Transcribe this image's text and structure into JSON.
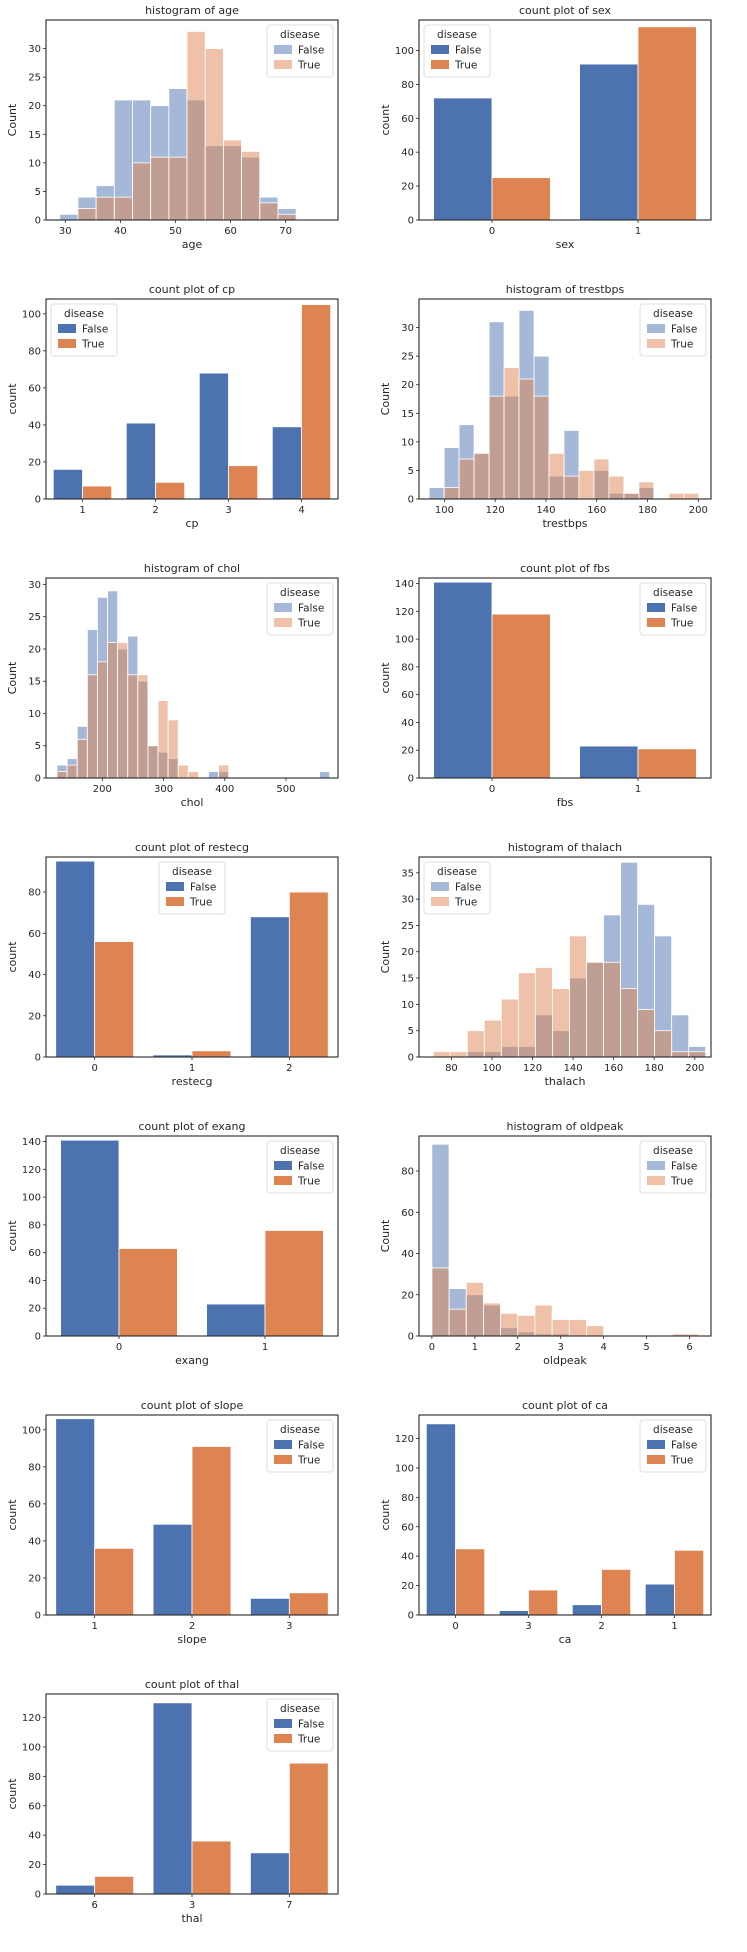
{
  "chart_data": [
    {
      "type": "histogram",
      "title": "histogram of age",
      "xlabel": "age",
      "ylabel": "Count",
      "xlim": [
        26.5,
        79.5
      ],
      "ylim": [
        0,
        35
      ],
      "xticks": [
        30,
        40,
        50,
        60,
        70
      ],
      "yticks": [
        0,
        5,
        10,
        15,
        20,
        25,
        30
      ],
      "bin_edges": [
        29,
        32.3,
        35.6,
        38.9,
        42.2,
        45.5,
        48.8,
        52.1,
        55.4,
        58.7,
        62,
        65.3,
        68.6,
        71.9,
        75.2,
        78.5
      ],
      "legend": {
        "title": "disease",
        "position": "upper right"
      },
      "series": [
        {
          "name": "False",
          "color": "#4c72b0",
          "values": [
            1,
            4,
            6,
            21,
            21,
            20,
            23,
            21,
            13,
            13,
            11,
            4,
            2
          ]
        },
        {
          "name": "True",
          "color": "#dd8452",
          "values": [
            0,
            2,
            4,
            4,
            10,
            11,
            11,
            33,
            30,
            14,
            12,
            3,
            1
          ]
        }
      ]
    },
    {
      "type": "bar",
      "title": "count plot of sex",
      "xlabel": "sex",
      "ylabel": "count",
      "categories": [
        "0",
        "1"
      ],
      "ylim": [
        0,
        118
      ],
      "yticks": [
        0,
        20,
        40,
        60,
        80,
        100
      ],
      "legend": {
        "title": "disease",
        "position": "upper left"
      },
      "series": [
        {
          "name": "False",
          "color": "#4c72b0",
          "values": [
            72,
            92
          ]
        },
        {
          "name": "True",
          "color": "#dd8452",
          "values": [
            25,
            114
          ]
        }
      ]
    },
    {
      "type": "bar",
      "title": "count plot of cp",
      "xlabel": "cp",
      "ylabel": "count",
      "categories": [
        "1",
        "2",
        "3",
        "4"
      ],
      "ylim": [
        0,
        108
      ],
      "yticks": [
        0,
        20,
        40,
        60,
        80,
        100
      ],
      "legend": {
        "title": "disease",
        "position": "upper left"
      },
      "series": [
        {
          "name": "False",
          "color": "#4c72b0",
          "values": [
            16,
            41,
            68,
            39
          ]
        },
        {
          "name": "True",
          "color": "#dd8452",
          "values": [
            7,
            9,
            18,
            105
          ]
        }
      ]
    },
    {
      "type": "histogram",
      "title": "histogram of trestbps",
      "xlabel": "trestbps",
      "ylabel": "Count",
      "xlim": [
        90,
        205
      ],
      "ylim": [
        0,
        35
      ],
      "xticks": [
        100,
        120,
        140,
        160,
        180,
        200
      ],
      "yticks": [
        0,
        5,
        10,
        15,
        20,
        25,
        30
      ],
      "bin_edges": [
        94,
        99.9,
        105.8,
        111.7,
        117.6,
        123.5,
        129.4,
        135.3,
        141.2,
        147.1,
        153,
        158.9,
        164.8,
        170.7,
        176.6,
        182.5,
        188.4,
        194.3,
        200.2
      ],
      "legend": {
        "title": "disease",
        "position": "upper right"
      },
      "series": [
        {
          "name": "False",
          "color": "#4c72b0",
          "values": [
            2,
            9,
            13,
            8,
            31,
            18,
            33,
            25,
            4,
            12,
            0,
            5,
            1,
            1,
            2,
            0,
            0,
            0
          ]
        },
        {
          "name": "True",
          "color": "#dd8452",
          "values": [
            0,
            2,
            7,
            8,
            18,
            23,
            21,
            18,
            8,
            4,
            5,
            7,
            4,
            1,
            3,
            0,
            1,
            1
          ]
        }
      ]
    },
    {
      "type": "histogram",
      "title": "histogram of chol",
      "xlabel": "chol",
      "ylabel": "Count",
      "xlim": [
        108,
        585
      ],
      "ylim": [
        0,
        31
      ],
      "xticks": [
        200,
        300,
        400,
        500
      ],
      "yticks": [
        0,
        5,
        10,
        15,
        20,
        25,
        30
      ],
      "bin_edges": [
        126,
        142.5,
        159,
        175.5,
        192,
        208.5,
        225,
        241.5,
        258,
        274.5,
        291,
        307.5,
        324,
        340.5,
        357,
        373.5,
        390,
        406.5,
        423,
        439.5,
        456,
        472.5,
        489,
        505.5,
        522,
        538.5,
        555,
        571.5
      ],
      "legend": {
        "title": "disease",
        "position": "upper right"
      },
      "series": [
        {
          "name": "False",
          "color": "#4c72b0",
          "values": [
            2,
            3,
            8,
            23,
            28,
            29,
            20,
            22,
            15,
            5,
            4,
            3,
            0,
            0,
            0,
            1,
            1,
            0,
            0,
            0,
            0,
            0,
            0,
            0,
            0,
            0,
            1
          ]
        },
        {
          "name": "True",
          "color": "#dd8452",
          "values": [
            1,
            2,
            6,
            16,
            18,
            21,
            21,
            16,
            16,
            5,
            12,
            9,
            2,
            1,
            0,
            0,
            2,
            0,
            0,
            0,
            0,
            0,
            0,
            0,
            0,
            0,
            0
          ]
        }
      ]
    },
    {
      "type": "bar",
      "title": "count plot of fbs",
      "xlabel": "fbs",
      "ylabel": "count",
      "categories": [
        "0",
        "1"
      ],
      "ylim": [
        0,
        144
      ],
      "yticks": [
        0,
        20,
        40,
        60,
        80,
        100,
        120,
        140
      ],
      "legend": {
        "title": "disease",
        "position": "upper right"
      },
      "series": [
        {
          "name": "False",
          "color": "#4c72b0",
          "values": [
            141,
            23
          ]
        },
        {
          "name": "True",
          "color": "#dd8452",
          "values": [
            118,
            21
          ]
        }
      ]
    },
    {
      "type": "bar",
      "title": "count plot of restecg",
      "xlabel": "restecg",
      "ylabel": "count",
      "categories": [
        "0",
        "1",
        "2"
      ],
      "ylim": [
        0,
        97
      ],
      "yticks": [
        0,
        20,
        40,
        60,
        80
      ],
      "legend": {
        "title": "disease",
        "position": "upper center"
      },
      "series": [
        {
          "name": "False",
          "color": "#4c72b0",
          "values": [
            95,
            1,
            68
          ]
        },
        {
          "name": "True",
          "color": "#dd8452",
          "values": [
            56,
            3,
            80
          ]
        }
      ]
    },
    {
      "type": "histogram",
      "title": "histogram of thalach",
      "xlabel": "thalach",
      "ylabel": "Count",
      "xlim": [
        64,
        208
      ],
      "ylim": [
        0,
        38
      ],
      "xticks": [
        80,
        100,
        120,
        140,
        160,
        180,
        200
      ],
      "yticks": [
        0,
        5,
        10,
        15,
        20,
        25,
        30,
        35
      ],
      "bin_edges": [
        71,
        79.4,
        87.8,
        96.2,
        104.6,
        113,
        121.4,
        129.8,
        138.2,
        146.6,
        155,
        163.4,
        171.8,
        180.2,
        188.6,
        197,
        205.4
      ],
      "legend": {
        "title": "disease",
        "position": "upper left"
      },
      "series": [
        {
          "name": "False",
          "color": "#4c72b0",
          "values": [
            0,
            0,
            1,
            1,
            2,
            2,
            8,
            5,
            15,
            18,
            27,
            37,
            29,
            23,
            8,
            2
          ]
        },
        {
          "name": "True",
          "color": "#dd8452",
          "values": [
            1,
            1,
            5,
            7,
            11,
            16,
            17,
            13,
            23,
            18,
            18,
            13,
            9,
            5,
            1,
            1
          ]
        }
      ]
    },
    {
      "type": "bar",
      "title": "count plot of exang",
      "xlabel": "exang",
      "ylabel": "count",
      "categories": [
        "0",
        "1"
      ],
      "ylim": [
        0,
        144
      ],
      "yticks": [
        0,
        20,
        40,
        60,
        80,
        100,
        120,
        140
      ],
      "legend": {
        "title": "disease",
        "position": "upper right"
      },
      "series": [
        {
          "name": "False",
          "color": "#4c72b0",
          "values": [
            141,
            23
          ]
        },
        {
          "name": "True",
          "color": "#dd8452",
          "values": [
            63,
            76
          ]
        }
      ]
    },
    {
      "type": "histogram",
      "title": "histogram of oldpeak",
      "xlabel": "oldpeak",
      "ylabel": "Count",
      "xlim": [
        -0.3,
        6.5
      ],
      "ylim": [
        0,
        97
      ],
      "xticks": [
        0,
        1,
        2,
        3,
        4,
        5,
        6
      ],
      "yticks": [
        0,
        20,
        40,
        60,
        80
      ],
      "bin_edges": [
        0,
        0.4,
        0.8,
        1.2,
        1.6,
        2,
        2.4,
        2.8,
        3.2,
        3.6,
        4,
        4.4,
        4.8,
        5.2,
        5.6,
        6,
        6.2
      ],
      "legend": {
        "title": "disease",
        "position": "upper right"
      },
      "series": [
        {
          "name": "False",
          "color": "#4c72b0",
          "values": [
            93,
            23,
            20,
            15,
            4,
            2,
            1,
            1,
            0,
            0,
            0,
            0,
            0,
            0,
            0,
            0
          ]
        },
        {
          "name": "True",
          "color": "#dd8452",
          "values": [
            33,
            13,
            26,
            16,
            11,
            10,
            15,
            8,
            8,
            5,
            0,
            0,
            0,
            0,
            1,
            1
          ]
        }
      ]
    },
    {
      "type": "bar",
      "title": "count plot of slope",
      "xlabel": "slope",
      "ylabel": "count",
      "categories": [
        "1",
        "2",
        "3"
      ],
      "ylim": [
        0,
        108
      ],
      "yticks": [
        0,
        20,
        40,
        60,
        80,
        100
      ],
      "legend": {
        "title": "disease",
        "position": "upper right"
      },
      "series": [
        {
          "name": "False",
          "color": "#4c72b0",
          "values": [
            106,
            49,
            9
          ]
        },
        {
          "name": "True",
          "color": "#dd8452",
          "values": [
            36,
            91,
            12
          ]
        }
      ]
    },
    {
      "type": "bar",
      "title": "count plot of ca",
      "xlabel": "ca",
      "ylabel": "count",
      "categories": [
        "0",
        "3",
        "2",
        "1"
      ],
      "ylim": [
        0,
        136
      ],
      "yticks": [
        0,
        20,
        40,
        60,
        80,
        100,
        120
      ],
      "legend": {
        "title": "disease",
        "position": "upper right"
      },
      "series": [
        {
          "name": "False",
          "color": "#4c72b0",
          "values": [
            130,
            3,
            7,
            21
          ]
        },
        {
          "name": "True",
          "color": "#dd8452",
          "values": [
            45,
            17,
            31,
            44
          ]
        }
      ]
    },
    {
      "type": "bar",
      "title": "count plot of thal",
      "xlabel": "thal",
      "ylabel": "count",
      "categories": [
        "6",
        "3",
        "7"
      ],
      "ylim": [
        0,
        136
      ],
      "yticks": [
        0,
        20,
        40,
        60,
        80,
        100,
        120
      ],
      "legend": {
        "title": "disease",
        "position": "upper right"
      },
      "series": [
        {
          "name": "False",
          "color": "#4c72b0",
          "values": [
            6,
            130,
            28
          ]
        },
        {
          "name": "True",
          "color": "#dd8452",
          "values": [
            12,
            36,
            89
          ]
        }
      ]
    }
  ]
}
